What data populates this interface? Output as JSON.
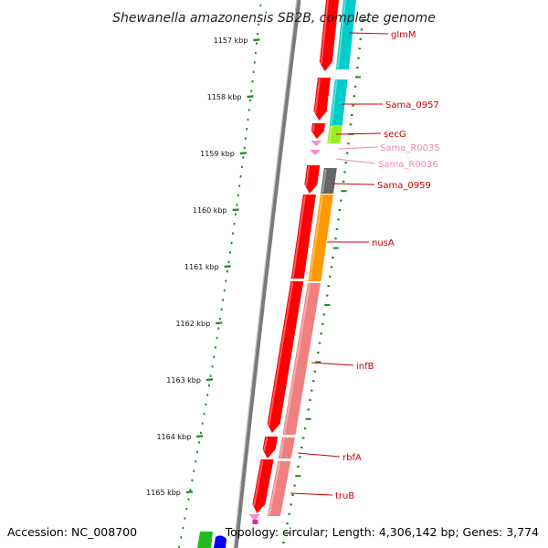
{
  "title": "Shewanella amazonensis SB2B, complete genome",
  "footer": {
    "accession": "Accession: NC_008700",
    "topology": "Topology: circular; Length: 4,306,142 bp; Genes: 3,774"
  },
  "ruler": {
    "unit": "kbp",
    "ticks": [
      {
        "label": "1157 kbp"
      },
      {
        "label": "1158 kbp"
      },
      {
        "label": "1159 kbp"
      },
      {
        "label": "1160 kbp"
      },
      {
        "label": "1161 kbp"
      },
      {
        "label": "1162 kbp"
      },
      {
        "label": "1163 kbp"
      },
      {
        "label": "1164 kbp"
      },
      {
        "label": "1165 kbp"
      }
    ]
  },
  "genes": [
    {
      "name": "glmM",
      "color": "#cc0000"
    },
    {
      "name": "Sama_0957",
      "color": "#cc0000"
    },
    {
      "name": "secG",
      "color": "#cc0000"
    },
    {
      "name": "Sama_R0035",
      "color": "#ee88bb"
    },
    {
      "name": "Sama_R0036",
      "color": "#ee88bb"
    },
    {
      "name": "Sama_0959",
      "color": "#cc0000"
    },
    {
      "name": "nusA",
      "color": "#cc0000"
    },
    {
      "name": "infB",
      "color": "#cc0000"
    },
    {
      "name": "rbfA",
      "color": "#cc0000"
    },
    {
      "name": "truB",
      "color": "#cc0000"
    }
  ],
  "colors": {
    "cds": "#ff0000",
    "rna": "#ff88cc",
    "backbone": "#888888",
    "ruler_ticks": "#1a8a1a",
    "cog_cyan": "#00cccc",
    "cog_lime": "#99ee22",
    "cog_gray": "#666666",
    "cog_orange": "#ff9900",
    "cog_salmon": "#f08080",
    "cog_green": "#22bb22",
    "cog_blue": "#0000ee"
  }
}
